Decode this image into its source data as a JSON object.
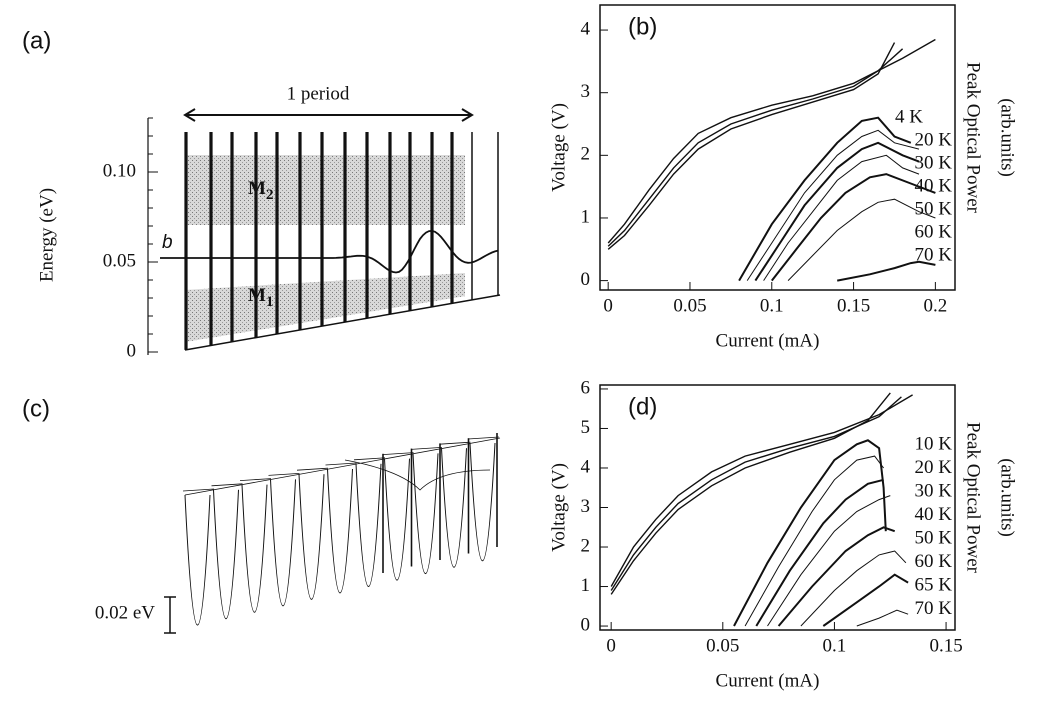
{
  "chart_data": [
    {
      "type": "diagram",
      "panel_label": "(a)",
      "ylabel": "Energy (eV)",
      "ylim": [
        0,
        0.13
      ],
      "yticks": [
        0,
        {
          "value": 0.05,
          "label": "0.05"
        },
        {
          "value": 0.1,
          "label": "0.10"
        }
      ],
      "period_label": "1 period",
      "upper_band": {
        "text": "M",
        "sub": "2"
      },
      "lower_band": {
        "text": "M",
        "sub": "1"
      },
      "state_label": "b"
    },
    {
      "type": "line",
      "panel_label": "(b)",
      "xlabel": "Current (mA)",
      "ylabel": "Voltage (V)",
      "y2label": [
        "Peak Optical Power",
        "(arb.units)"
      ],
      "color": "#111",
      "xlim": [
        -0.005,
        0.212
      ],
      "xticks": [
        0,
        0.05,
        0.1,
        0.15,
        0.2
      ],
      "ylim": [
        -0.15,
        4.4
      ],
      "yticks": [
        0,
        1,
        2,
        3,
        4
      ],
      "voltage_series": [
        {
          "x": [
            0,
            0.01,
            0.025,
            0.04,
            0.055,
            0.075,
            0.1,
            0.125,
            0.15,
            0.165,
            0.18,
            0.2
          ],
          "values": [
            0.6,
            0.9,
            1.45,
            1.95,
            2.35,
            2.6,
            2.8,
            2.95,
            3.15,
            3.35,
            3.55,
            3.85
          ]
        },
        {
          "x": [
            0,
            0.01,
            0.025,
            0.04,
            0.055,
            0.075,
            0.1,
            0.125,
            0.15,
            0.165,
            0.18
          ],
          "values": [
            0.55,
            0.8,
            1.3,
            1.8,
            2.2,
            2.5,
            2.72,
            2.9,
            3.1,
            3.35,
            3.7
          ]
        },
        {
          "x": [
            0,
            0.01,
            0.025,
            0.04,
            0.055,
            0.075,
            0.1,
            0.125,
            0.15,
            0.165,
            0.175
          ],
          "values": [
            0.5,
            0.72,
            1.2,
            1.7,
            2.1,
            2.42,
            2.65,
            2.85,
            3.05,
            3.3,
            3.8
          ]
        }
      ],
      "series": [
        {
          "name": "4 K",
          "x": [
            0.08,
            0.1,
            0.12,
            0.14,
            0.155,
            0.165,
            0.175,
            0.185
          ],
          "values": [
            0,
            0.9,
            1.6,
            2.2,
            2.55,
            2.6,
            2.3,
            2.2
          ]
        },
        {
          "name": "20 K",
          "x": [
            0.085,
            0.1,
            0.12,
            0.14,
            0.155,
            0.165,
            0.175,
            0.19
          ],
          "values": [
            0,
            0.6,
            1.4,
            2.0,
            2.3,
            2.4,
            2.2,
            2.1
          ]
        },
        {
          "name": "30 K",
          "x": [
            0.09,
            0.105,
            0.12,
            0.14,
            0.155,
            0.165,
            0.18,
            0.19
          ],
          "values": [
            0,
            0.6,
            1.2,
            1.8,
            2.1,
            2.2,
            2.0,
            1.9
          ]
        },
        {
          "name": "40 K",
          "x": [
            0.095,
            0.11,
            0.125,
            0.14,
            0.155,
            0.17,
            0.18,
            0.19
          ],
          "values": [
            0,
            0.6,
            1.1,
            1.6,
            1.9,
            2.0,
            1.8,
            1.7
          ]
        },
        {
          "name": "50 K",
          "x": [
            0.1,
            0.115,
            0.13,
            0.145,
            0.16,
            0.17,
            0.185,
            0.2
          ],
          "values": [
            0,
            0.5,
            1.0,
            1.4,
            1.65,
            1.7,
            1.55,
            1.4
          ]
        },
        {
          "name": "60 K",
          "x": [
            0.11,
            0.125,
            0.14,
            0.155,
            0.165,
            0.175,
            0.19,
            0.2
          ],
          "values": [
            0,
            0.4,
            0.8,
            1.1,
            1.25,
            1.3,
            1.1,
            1.0
          ]
        },
        {
          "name": "70 K",
          "x": [
            0.14,
            0.16,
            0.175,
            0.185,
            0.19,
            0.2
          ],
          "values": [
            0,
            0.1,
            0.2,
            0.28,
            0.3,
            0.25
          ]
        }
      ]
    },
    {
      "type": "diagram",
      "panel_label": "(c)",
      "scale_bar": "0.02 eV"
    },
    {
      "type": "line",
      "panel_label": "(d)",
      "xlabel": "Current (mA)",
      "ylabel": "Voltage (V)",
      "y2label": [
        "Peak Optical Power",
        "(arb.units)"
      ],
      "color": "#111",
      "xlim": [
        -0.005,
        0.154
      ],
      "xticks": [
        0,
        0.05,
        0.1,
        0.15
      ],
      "ylim": [
        -0.1,
        6.1
      ],
      "yticks": [
        0,
        1,
        2,
        3,
        4,
        5,
        6
      ],
      "voltage_series": [
        {
          "x": [
            0,
            0.01,
            0.02,
            0.03,
            0.045,
            0.06,
            0.08,
            0.1,
            0.12,
            0.135
          ],
          "values": [
            1.0,
            2.0,
            2.7,
            3.3,
            3.9,
            4.3,
            4.6,
            4.9,
            5.35,
            5.85
          ]
        },
        {
          "x": [
            0,
            0.01,
            0.02,
            0.03,
            0.045,
            0.06,
            0.08,
            0.1,
            0.12,
            0.13
          ],
          "values": [
            0.9,
            1.8,
            2.5,
            3.1,
            3.7,
            4.15,
            4.5,
            4.8,
            5.3,
            5.8
          ]
        },
        {
          "x": [
            0,
            0.01,
            0.02,
            0.03,
            0.045,
            0.06,
            0.08,
            0.1,
            0.115,
            0.125
          ],
          "values": [
            0.8,
            1.65,
            2.35,
            2.95,
            3.55,
            4.0,
            4.4,
            4.75,
            5.2,
            5.9
          ]
        }
      ],
      "series": [
        {
          "name": "10 K",
          "x": [
            0.055,
            0.07,
            0.085,
            0.1,
            0.11,
            0.115,
            0.12,
            0.122,
            0.123
          ],
          "values": [
            0,
            1.6,
            3.0,
            4.2,
            4.6,
            4.7,
            4.5,
            3.5,
            2.4
          ]
        },
        {
          "name": "20 K",
          "x": [
            0.06,
            0.075,
            0.09,
            0.1,
            0.11,
            0.118,
            0.122
          ],
          "values": [
            0,
            1.5,
            2.9,
            3.7,
            4.2,
            4.3,
            4.0
          ]
        },
        {
          "name": "30 K",
          "x": [
            0.065,
            0.08,
            0.095,
            0.105,
            0.115,
            0.122
          ],
          "values": [
            0,
            1.4,
            2.6,
            3.2,
            3.6,
            3.7
          ]
        },
        {
          "name": "40 K",
          "x": [
            0.07,
            0.085,
            0.1,
            0.11,
            0.12,
            0.125
          ],
          "values": [
            0,
            1.3,
            2.4,
            2.9,
            3.2,
            3.3
          ]
        },
        {
          "name": "50 K",
          "x": [
            0.075,
            0.09,
            0.105,
            0.115,
            0.122,
            0.127
          ],
          "values": [
            0,
            1.0,
            1.9,
            2.3,
            2.5,
            2.4
          ]
        },
        {
          "name": "60 K",
          "x": [
            0.085,
            0.1,
            0.11,
            0.12,
            0.127,
            0.132
          ],
          "values": [
            0,
            0.9,
            1.4,
            1.8,
            1.9,
            1.6
          ]
        },
        {
          "name": "65 K",
          "x": [
            0.095,
            0.11,
            0.12,
            0.127,
            0.133
          ],
          "values": [
            0,
            0.6,
            1.0,
            1.3,
            1.1
          ]
        },
        {
          "name": "70 K",
          "x": [
            0.11,
            0.12,
            0.128,
            0.133
          ],
          "values": [
            0,
            0.2,
            0.4,
            0.3
          ]
        }
      ]
    }
  ]
}
